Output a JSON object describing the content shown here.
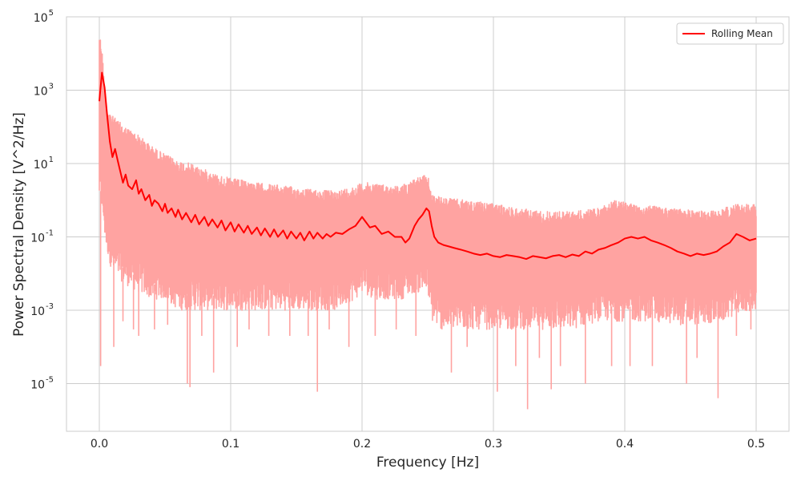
{
  "chart_data": {
    "type": "line",
    "title": "",
    "xlabel": "Frequency [Hz]",
    "ylabel": "Power Spectral Density [V^2/Hz]",
    "xlim": [
      -0.025,
      0.525
    ],
    "ylim": [
      5e-07,
      100000
    ],
    "yscale": "log",
    "grid": true,
    "legend": {
      "position": "top-right",
      "entries": [
        "Rolling Mean"
      ]
    },
    "x_ticks": [
      {
        "value": 0.0,
        "label": "0.0"
      },
      {
        "value": 0.1,
        "label": "0.1"
      },
      {
        "value": 0.2,
        "label": "0.2"
      },
      {
        "value": 0.3,
        "label": "0.3"
      },
      {
        "value": 0.4,
        "label": "0.4"
      },
      {
        "value": 0.5,
        "label": "0.5"
      }
    ],
    "y_ticks": [
      {
        "value": 100000,
        "base": "10",
        "exp": "5"
      },
      {
        "value": 1000,
        "base": "10",
        "exp": "3"
      },
      {
        "value": 10,
        "base": "10",
        "exp": "1"
      },
      {
        "value": 0.1,
        "base": "10",
        "exp": "-1"
      },
      {
        "value": 0.001,
        "base": "10",
        "exp": "-3"
      },
      {
        "value": 1e-05,
        "base": "10",
        "exp": "-5"
      }
    ],
    "series": [
      {
        "name": "Rolling Mean",
        "color": "#ff0000",
        "x": [
          0.0,
          0.002,
          0.004,
          0.006,
          0.008,
          0.01,
          0.012,
          0.014,
          0.016,
          0.018,
          0.02,
          0.022,
          0.025,
          0.028,
          0.03,
          0.032,
          0.035,
          0.038,
          0.04,
          0.042,
          0.045,
          0.048,
          0.05,
          0.052,
          0.055,
          0.058,
          0.06,
          0.063,
          0.066,
          0.07,
          0.073,
          0.076,
          0.08,
          0.083,
          0.086,
          0.09,
          0.093,
          0.096,
          0.1,
          0.103,
          0.106,
          0.11,
          0.113,
          0.116,
          0.12,
          0.123,
          0.126,
          0.13,
          0.133,
          0.136,
          0.14,
          0.143,
          0.146,
          0.15,
          0.153,
          0.156,
          0.16,
          0.163,
          0.166,
          0.17,
          0.173,
          0.176,
          0.18,
          0.185,
          0.19,
          0.195,
          0.2,
          0.203,
          0.206,
          0.21,
          0.215,
          0.22,
          0.225,
          0.23,
          0.233,
          0.236,
          0.24,
          0.243,
          0.246,
          0.249,
          0.251,
          0.253,
          0.255,
          0.258,
          0.262,
          0.266,
          0.27,
          0.275,
          0.28,
          0.285,
          0.29,
          0.295,
          0.3,
          0.305,
          0.31,
          0.315,
          0.32,
          0.325,
          0.33,
          0.335,
          0.34,
          0.345,
          0.35,
          0.355,
          0.36,
          0.365,
          0.37,
          0.375,
          0.38,
          0.385,
          0.39,
          0.395,
          0.4,
          0.405,
          0.41,
          0.415,
          0.42,
          0.425,
          0.43,
          0.435,
          0.44,
          0.445,
          0.45,
          0.455,
          0.46,
          0.465,
          0.47,
          0.475,
          0.48,
          0.485,
          0.49,
          0.495,
          0.5
        ],
        "y": [
          500,
          3000,
          1200,
          200,
          40,
          15,
          25,
          12,
          6,
          3,
          5,
          2.5,
          2.0,
          3.5,
          1.5,
          2.0,
          1.0,
          1.4,
          0.7,
          1.0,
          0.8,
          0.5,
          0.8,
          0.45,
          0.6,
          0.35,
          0.55,
          0.3,
          0.45,
          0.25,
          0.4,
          0.22,
          0.35,
          0.2,
          0.3,
          0.18,
          0.28,
          0.15,
          0.25,
          0.14,
          0.22,
          0.13,
          0.2,
          0.12,
          0.18,
          0.11,
          0.17,
          0.1,
          0.16,
          0.1,
          0.15,
          0.09,
          0.14,
          0.09,
          0.13,
          0.08,
          0.14,
          0.09,
          0.13,
          0.09,
          0.12,
          0.1,
          0.13,
          0.12,
          0.16,
          0.2,
          0.35,
          0.25,
          0.18,
          0.2,
          0.12,
          0.14,
          0.1,
          0.1,
          0.07,
          0.09,
          0.2,
          0.3,
          0.4,
          0.6,
          0.5,
          0.2,
          0.1,
          0.07,
          0.06,
          0.055,
          0.05,
          0.045,
          0.04,
          0.035,
          0.032,
          0.035,
          0.03,
          0.028,
          0.032,
          0.03,
          0.028,
          0.025,
          0.03,
          0.028,
          0.026,
          0.03,
          0.032,
          0.028,
          0.033,
          0.03,
          0.04,
          0.035,
          0.045,
          0.05,
          0.06,
          0.07,
          0.09,
          0.1,
          0.09,
          0.1,
          0.08,
          0.07,
          0.06,
          0.05,
          0.04,
          0.035,
          0.03,
          0.035,
          0.032,
          0.035,
          0.04,
          0.055,
          0.07,
          0.12,
          0.1,
          0.08,
          0.09
        ]
      }
    ],
    "raw_band": {
      "color": "#ffa3a1",
      "x": [
        0.0,
        0.002,
        0.005,
        0.01,
        0.02,
        0.03,
        0.04,
        0.05,
        0.06,
        0.07,
        0.08,
        0.09,
        0.1,
        0.12,
        0.14,
        0.16,
        0.18,
        0.195,
        0.2,
        0.21,
        0.22,
        0.23,
        0.24,
        0.25,
        0.253,
        0.26,
        0.28,
        0.3,
        0.32,
        0.34,
        0.36,
        0.38,
        0.39,
        0.4,
        0.42,
        0.44,
        0.46,
        0.475,
        0.485,
        0.5
      ],
      "upper": [
        40000,
        15000,
        400,
        200,
        100,
        60,
        30,
        18,
        12,
        10,
        7,
        5,
        4,
        3,
        2.5,
        2,
        1.8,
        2.5,
        3,
        3,
        2.5,
        2.5,
        4,
        5,
        1.5,
        1.2,
        1,
        0.8,
        0.6,
        0.5,
        0.5,
        0.6,
        1,
        0.9,
        0.7,
        0.6,
        0.5,
        0.6,
        0.8,
        0.8
      ],
      "lower": [
        1,
        0.5,
        0.05,
        0.01,
        0.005,
        0.003,
        0.002,
        0.002,
        0.001,
        0.001,
        0.001,
        0.001,
        0.001,
        0.001,
        0.001,
        0.001,
        0.001,
        0.002,
        0.003,
        0.002,
        0.002,
        0.002,
        0.003,
        0.003,
        0.0005,
        0.0003,
        0.0003,
        0.0003,
        0.0003,
        0.0003,
        0.0003,
        0.0005,
        0.0005,
        0.0005,
        0.0005,
        0.0004,
        0.0004,
        0.0005,
        0.0008,
        0.001
      ],
      "dips": [
        [
          0.001,
          3e-05
        ],
        [
          0.011,
          0.0001
        ],
        [
          0.018,
          0.0005
        ],
        [
          0.026,
          0.0003
        ],
        [
          0.03,
          0.0002
        ],
        [
          0.042,
          0.0003
        ],
        [
          0.052,
          0.0004
        ],
        [
          0.067,
          1e-05
        ],
        [
          0.069,
          8e-06
        ],
        [
          0.078,
          0.0002
        ],
        [
          0.087,
          2e-05
        ],
        [
          0.105,
          0.0001
        ],
        [
          0.114,
          0.0003
        ],
        [
          0.129,
          0.0002
        ],
        [
          0.145,
          0.0002
        ],
        [
          0.159,
          0.0002
        ],
        [
          0.166,
          6e-06
        ],
        [
          0.175,
          0.0003
        ],
        [
          0.19,
          0.0001
        ],
        [
          0.21,
          0.0002
        ],
        [
          0.226,
          0.0003
        ],
        [
          0.241,
          0.0002
        ],
        [
          0.268,
          2e-05
        ],
        [
          0.28,
          0.0001
        ],
        [
          0.303,
          6e-06
        ],
        [
          0.317,
          3e-05
        ],
        [
          0.326,
          2e-06
        ],
        [
          0.335,
          5e-05
        ],
        [
          0.344,
          7e-06
        ],
        [
          0.351,
          3e-05
        ],
        [
          0.37,
          1e-05
        ],
        [
          0.39,
          3e-05
        ],
        [
          0.404,
          3e-05
        ],
        [
          0.421,
          3e-05
        ],
        [
          0.447,
          1e-05
        ],
        [
          0.455,
          5e-05
        ],
        [
          0.471,
          4e-06
        ],
        [
          0.485,
          0.0002
        ],
        [
          0.496,
          0.0003
        ]
      ]
    }
  }
}
